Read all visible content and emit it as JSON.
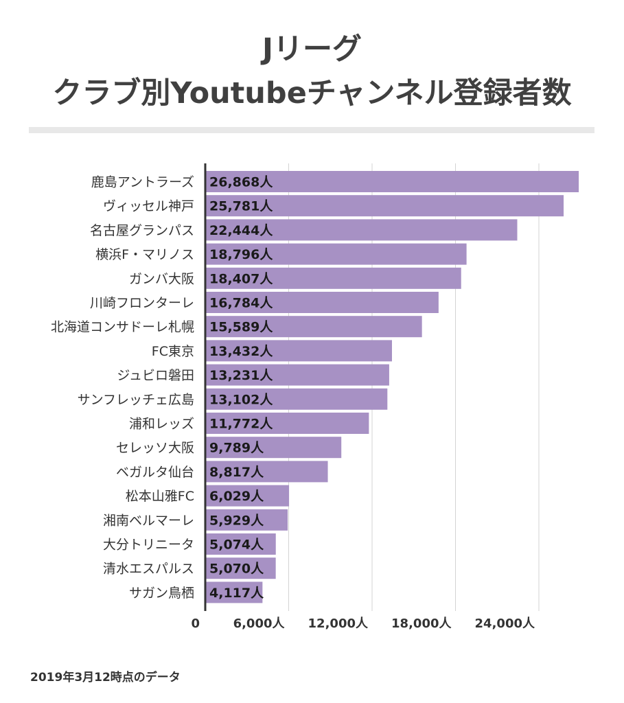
{
  "chart_data": {
    "type": "bar",
    "orientation": "horizontal",
    "title_lines": [
      "Jリーグ",
      "クラブ別Youtubeチャンネル登録者数"
    ],
    "categories": [
      "鹿島アントラーズ",
      "ヴィッセル神戸",
      "名古屋グランパス",
      "横浜F・マリノス",
      "ガンバ大阪",
      "川崎フロンターレ",
      "北海道コンサドーレ札幌",
      "FC東京",
      "ジュビロ磐田",
      "サンフレッチェ広島",
      "浦和レッズ",
      "セレッソ大阪",
      "ベガルタ仙台",
      "松本山雅FC",
      "湘南ベルマーレ",
      "大分トリニータ",
      "清水エスパルス",
      "サガン鳥栖"
    ],
    "values": [
      26868,
      25781,
      22444,
      18796,
      18407,
      16784,
      15589,
      13432,
      13231,
      13102,
      11772,
      9789,
      8817,
      6029,
      5929,
      5074,
      5070,
      4117
    ],
    "value_labels": [
      "26,868人",
      "25,781人",
      "22,444人",
      "18,796人",
      "18,407人",
      "16,784人",
      "15,589人",
      "13,432人",
      "13,231人",
      "13,102人",
      "11,772人",
      "9,789人",
      "8,817人",
      "6,029人",
      "5,929人",
      "5,074人",
      "5,070人",
      "4,117人"
    ],
    "x_ticks": [
      0,
      6000,
      12000,
      18000,
      24000
    ],
    "x_tick_labels": [
      "0",
      "6,000人",
      "12,000人",
      "18,000人",
      "24,000人"
    ],
    "xlim": [
      0,
      27000
    ],
    "grid": true,
    "bar_color": "#a791c4"
  },
  "footnote": "2019年3月12時点のデータ"
}
